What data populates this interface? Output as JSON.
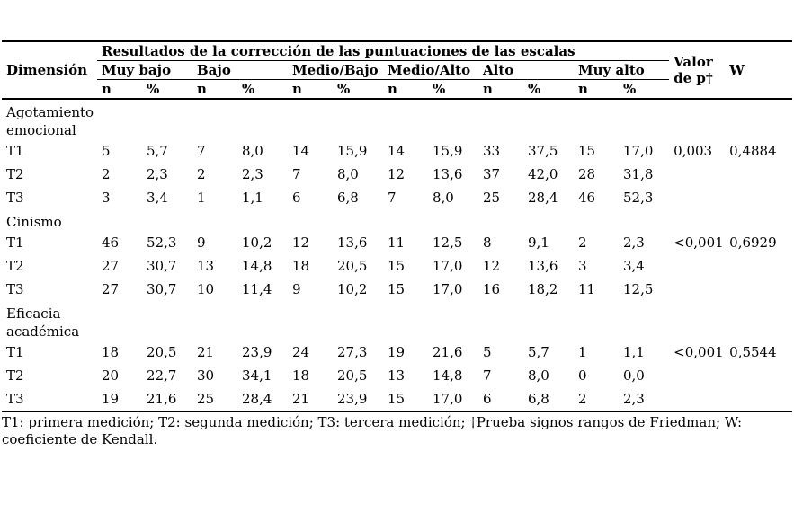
{
  "table": {
    "dimension_header": "Dimensión",
    "group_header": "Resultados de la corrección de las puntuaciones de las escalas",
    "level_headers": [
      "Muy bajo",
      "Bajo",
      "Medio/Bajo",
      "Medio/Alto",
      "Alto",
      "Muy alto"
    ],
    "sub_headers": [
      "n",
      "%"
    ],
    "p_header": "Valor de p†",
    "w_header": "W",
    "sections": [
      {
        "label": "Agotamiento emocional",
        "rows": [
          {
            "label": "T1",
            "values": [
              "5",
              "5,7",
              "7",
              "8,0",
              "14",
              "15,9",
              "14",
              "15,9",
              "33",
              "37,5",
              "15",
              "17,0"
            ],
            "p": "0,003",
            "w": "0,4884"
          },
          {
            "label": "T2",
            "values": [
              "2",
              "2,3",
              "2",
              "2,3",
              "7",
              "8,0",
              "12",
              "13,6",
              "37",
              "42,0",
              "28",
              "31,8"
            ],
            "p": "",
            "w": ""
          },
          {
            "label": "T3",
            "values": [
              "3",
              "3,4",
              "1",
              "1,1",
              "6",
              "6,8",
              "7",
              "8,0",
              "25",
              "28,4",
              "46",
              "52,3"
            ],
            "p": "",
            "w": ""
          }
        ]
      },
      {
        "label": "Cinismo",
        "rows": [
          {
            "label": "T1",
            "values": [
              "46",
              "52,3",
              "9",
              "10,2",
              "12",
              "13,6",
              "11",
              "12,5",
              "8",
              "9,1",
              "2",
              "2,3"
            ],
            "p": "<0,001",
            "w": "0,6929"
          },
          {
            "label": "T2",
            "values": [
              "27",
              "30,7",
              "13",
              "14,8",
              "18",
              "20,5",
              "15",
              "17,0",
              "12",
              "13,6",
              "3",
              "3,4"
            ],
            "p": "",
            "w": ""
          },
          {
            "label": "T3",
            "values": [
              "27",
              "30,7",
              "10",
              "11,4",
              "9",
              "10,2",
              "15",
              "17,0",
              "16",
              "18,2",
              "11",
              "12,5"
            ],
            "p": "",
            "w": ""
          }
        ]
      },
      {
        "label": "Eficacia académica",
        "rows": [
          {
            "label": "T1",
            "values": [
              "18",
              "20,5",
              "21",
              "23,9",
              "24",
              "27,3",
              "19",
              "21,6",
              "5",
              "5,7",
              "1",
              "1,1"
            ],
            "p": "<0,001",
            "w": "0,5544"
          },
          {
            "label": "T2",
            "values": [
              "20",
              "22,7",
              "30",
              "34,1",
              "18",
              "20,5",
              "13",
              "14,8",
              "7",
              "8,0",
              "0",
              "0,0"
            ],
            "p": "",
            "w": ""
          },
          {
            "label": "T3",
            "values": [
              "19",
              "21,6",
              "25",
              "28,4",
              "21",
              "23,9",
              "15",
              "17,0",
              "6",
              "6,8",
              "2",
              "2,3"
            ],
            "p": "",
            "w": ""
          }
        ]
      }
    ],
    "footnote": "T1: primera medición; T2: segunda medición; T3: tercera medición; †Prueba signos rangos de Friedman; W: coeficiente de Kendall."
  }
}
